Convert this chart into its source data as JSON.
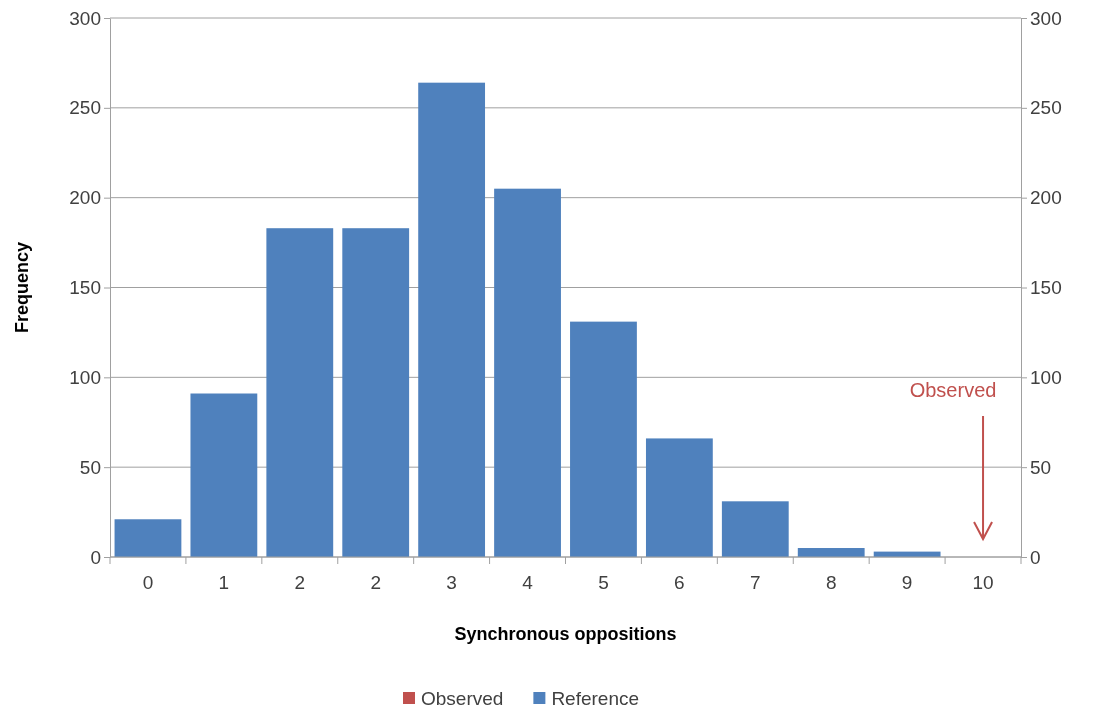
{
  "chart_data": {
    "type": "bar",
    "xlabel": "Synchronous oppositions",
    "ylabel": "Frequency",
    "categories": [
      "0",
      "1",
      "2",
      "2",
      "3",
      "4",
      "5",
      "6",
      "7",
      "8",
      "9",
      "10"
    ],
    "series": [
      {
        "name": "Observed",
        "color": "#c0504d",
        "values": [
          null,
          null,
          null,
          null,
          null,
          null,
          null,
          null,
          null,
          null,
          null,
          0
        ]
      },
      {
        "name": "Reference",
        "color": "#4f81bd",
        "values": [
          21,
          91,
          183,
          183,
          264,
          205,
          131,
          66,
          31,
          5,
          3,
          0
        ]
      }
    ],
    "ylim": [
      0,
      300
    ],
    "yticks": [
      0,
      50,
      100,
      150,
      200,
      250,
      300
    ],
    "y2lim": [
      0,
      300
    ],
    "y2ticks": [
      0,
      50,
      100,
      150,
      200,
      250,
      300
    ],
    "grid": "y",
    "legend": "bottom",
    "annotations": [
      "Observed"
    ]
  }
}
